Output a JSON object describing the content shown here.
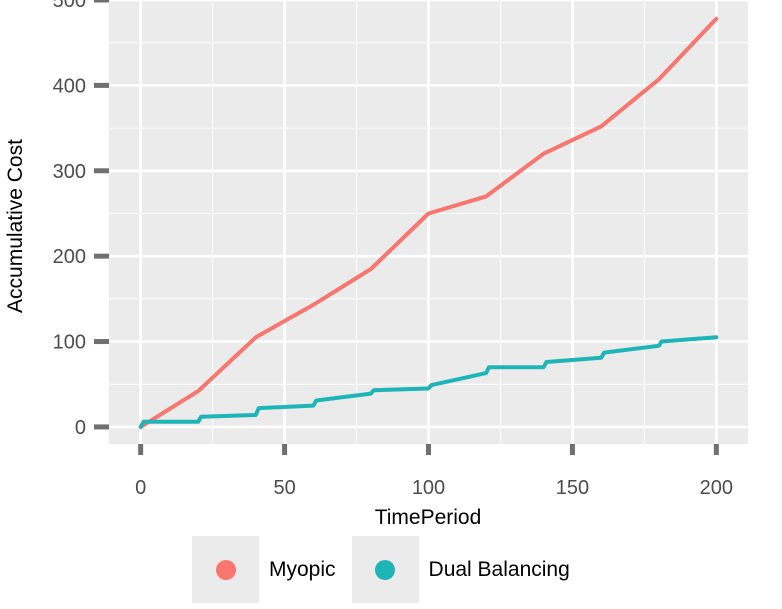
{
  "chart_data": {
    "type": "line",
    "title": "",
    "xlabel": "TimePeriod",
    "ylabel": "Accumulative Cost",
    "xlim": [
      -11,
      211
    ],
    "ylim": [
      -20,
      500
    ],
    "x_ticks": [
      0,
      50,
      100,
      150,
      200
    ],
    "x_tick_labels": [
      "0",
      "50",
      "100",
      "150",
      "200"
    ],
    "y_ticks": [
      0,
      100,
      200,
      300,
      400,
      500
    ],
    "y_tick_labels": [
      "0",
      "100",
      "200",
      "300",
      "400",
      "500"
    ],
    "grid": true,
    "legend_position": "bottom",
    "series": [
      {
        "name": "Myopic",
        "color": "#f8766d",
        "x": [
          0,
          20,
          40,
          60,
          80,
          100,
          120,
          140,
          160,
          180,
          200
        ],
        "y": [
          0,
          42,
          105,
          143,
          185,
          250,
          270,
          320,
          352,
          407,
          478
        ]
      },
      {
        "name": "Dual Balancing",
        "color": "#1fb5b8",
        "x": [
          0,
          1,
          20,
          21,
          40,
          41,
          60,
          61,
          80,
          81,
          100,
          101,
          120,
          121,
          140,
          141,
          160,
          161,
          180,
          181,
          200
        ],
        "y": [
          0,
          6,
          6,
          12,
          14,
          22,
          25,
          31,
          39,
          43,
          45,
          49,
          63,
          70,
          70,
          76,
          81,
          87,
          95,
          100,
          105
        ]
      }
    ]
  }
}
